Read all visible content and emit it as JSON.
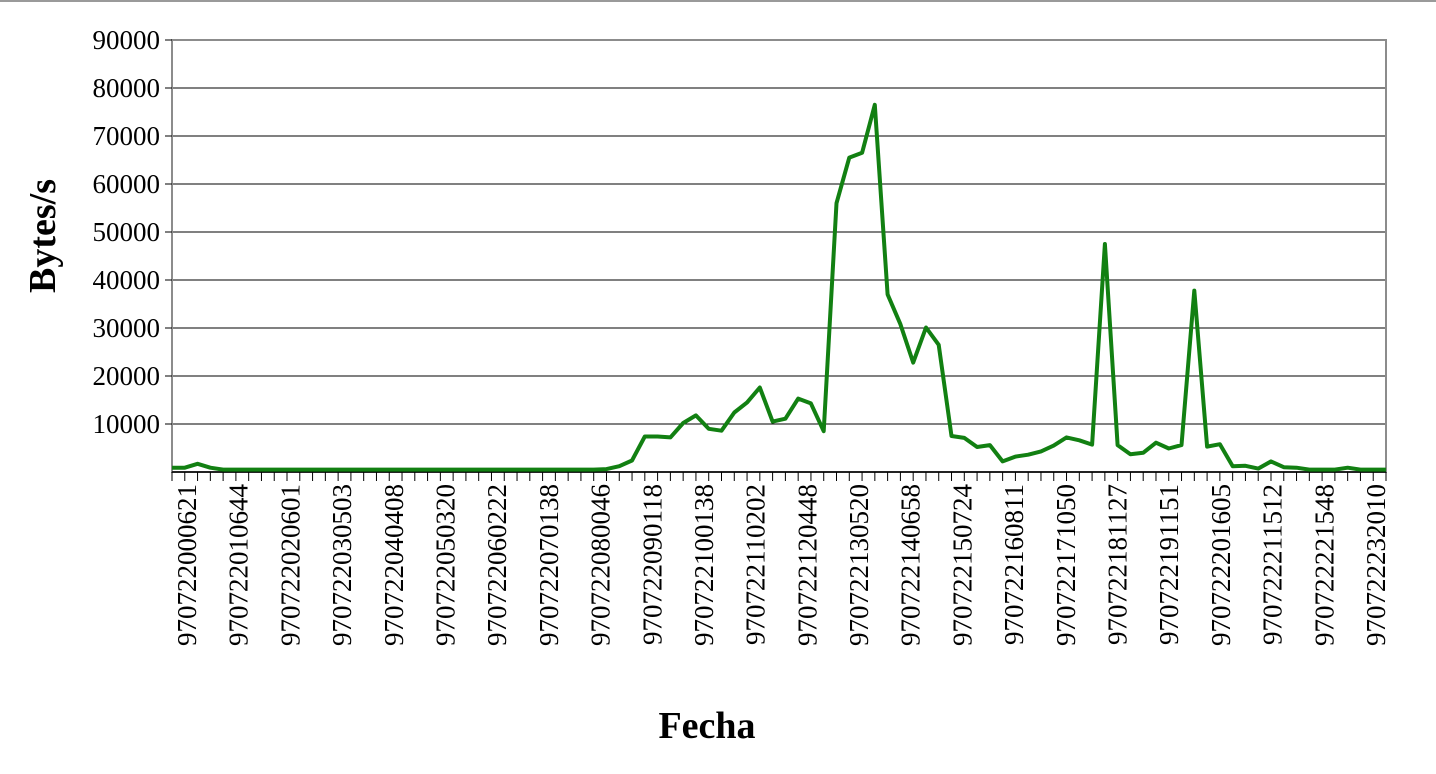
{
  "chart_data": {
    "type": "line",
    "title": "",
    "xlabel": "Fecha",
    "ylabel": "Bytes/s",
    "ylim": [
      0,
      90000
    ],
    "yticks": [
      10000,
      20000,
      30000,
      40000,
      50000,
      60000,
      70000,
      80000,
      90000
    ],
    "grid": "horizontal",
    "legend": "none",
    "line_color": "#128012",
    "x_tick_labels": [
      "970722000621",
      "970722010644",
      "970722020601",
      "970722030503",
      "970722040408",
      "970722050320",
      "970722060222",
      "970722070138",
      "970722080046",
      "970722090118",
      "970722100138",
      "970722110202",
      "970722120448",
      "970722130520",
      "970722140658",
      "970722150724",
      "970722160811",
      "970722171050",
      "970722181127",
      "970722191151",
      "970722201605",
      "970722211512",
      "970722221548",
      "970722232010"
    ],
    "values": [
      900,
      900,
      1700,
      900,
      500,
      500,
      500,
      500,
      500,
      500,
      500,
      500,
      500,
      500,
      500,
      500,
      500,
      500,
      500,
      500,
      500,
      500,
      500,
      500,
      500,
      500,
      500,
      500,
      500,
      500,
      500,
      500,
      500,
      500,
      600,
      1200,
      2400,
      7400,
      7400,
      7200,
      10200,
      11800,
      9000,
      8600,
      12400,
      14500,
      17600,
      10500,
      11100,
      15300,
      14300,
      8500,
      56000,
      65500,
      66500,
      76500,
      37000,
      30800,
      22800,
      30100,
      26500,
      7500,
      7100,
      5200,
      5600,
      2200,
      3200,
      3600,
      4300,
      5500,
      7200,
      6600,
      5700,
      47500,
      5600,
      3700,
      4000,
      6100,
      4900,
      5600,
      37800,
      5300,
      5800,
      1200,
      1300,
      700,
      2200,
      1000,
      900,
      500,
      500,
      500,
      900,
      500,
      500,
      500
    ]
  }
}
